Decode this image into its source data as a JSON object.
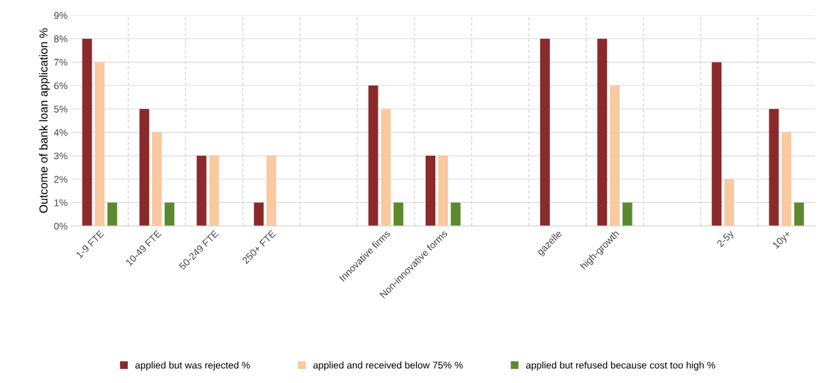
{
  "chart_data": {
    "type": "bar",
    "ylabel": "Outcome of bank loan application %",
    "categories": [
      "1-9 FTE",
      "10-49 FTE",
      "50-249 FTE",
      "250+ FTE",
      null,
      "Innovative firms",
      "Non-innovative forms",
      null,
      "gazelle",
      "high-growth",
      null,
      "2-5y",
      "10y+"
    ],
    "series": [
      {
        "name": "applied but was rejected %",
        "color": "#8b2a2a",
        "values": [
          8,
          5,
          3,
          1,
          null,
          6,
          3,
          null,
          8,
          8,
          null,
          7,
          5
        ]
      },
      {
        "name": "applied and received below 75% %",
        "color": "#f9c9a0",
        "values": [
          7,
          4,
          3,
          3,
          null,
          5,
          3,
          null,
          null,
          6,
          null,
          2,
          4
        ]
      },
      {
        "name": "applied but refused because cost too high %",
        "color": "#5b8a2e",
        "values": [
          1,
          1,
          null,
          null,
          null,
          1,
          1,
          null,
          null,
          1,
          null,
          null,
          1
        ]
      }
    ],
    "ylim": [
      0,
      9
    ],
    "yticks": [
      {
        "value": 0,
        "label": "0%"
      },
      {
        "value": 1,
        "label": "1%"
      },
      {
        "value": 2,
        "label": "2%"
      },
      {
        "value": 3,
        "label": "3%"
      },
      {
        "value": 4,
        "label": "4%"
      },
      {
        "value": 5,
        "label": "5%"
      },
      {
        "value": 6,
        "label": "6%"
      },
      {
        "value": 7,
        "label": "7%"
      },
      {
        "value": 8,
        "label": "8%"
      },
      {
        "value": 9,
        "label": "9%"
      }
    ],
    "grid": true,
    "legend": "bottom"
  }
}
